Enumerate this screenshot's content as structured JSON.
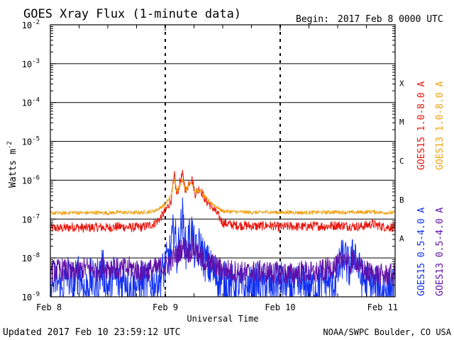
{
  "chart_data": {
    "type": "line",
    "title": "GOES Xray Flux (1-minute data)",
    "begin_label": "Begin:",
    "begin_value": "2017 Feb 8 0000 UTC",
    "xlabel": "Universal Time",
    "ylabel": "Watts m",
    "ylabel_sup": "-2",
    "yscale": "log",
    "ylim": [
      1e-09,
      0.01
    ],
    "xlim_days": [
      0,
      3
    ],
    "x_ticks": [
      {
        "day": 0,
        "label": "Feb 8"
      },
      {
        "day": 1,
        "label": "Feb 9"
      },
      {
        "day": 2,
        "label": "Feb 10"
      },
      {
        "day": 3,
        "label": "Feb 11"
      }
    ],
    "y_ticks": [
      {
        "base": "10",
        "exp": "-9",
        "value": 1e-09
      },
      {
        "base": "10",
        "exp": "-8",
        "value": 1e-08
      },
      {
        "base": "10",
        "exp": "-7",
        "value": 1e-07
      },
      {
        "base": "10",
        "exp": "-6",
        "value": 1e-06
      },
      {
        "base": "10",
        "exp": "-5",
        "value": 1e-05
      },
      {
        "base": "10",
        "exp": "-4",
        "value": 0.0001
      },
      {
        "base": "10",
        "exp": "-3",
        "value": 0.001
      },
      {
        "base": "10",
        "exp": "-2",
        "value": 0.01
      }
    ],
    "flare_classes": [
      {
        "label": "A",
        "value": 3.16e-08
      },
      {
        "label": "B",
        "value": 3.16e-07
      },
      {
        "label": "C",
        "value": 3.16e-06
      },
      {
        "label": "M",
        "value": 3.16e-05
      },
      {
        "label": "X",
        "value": 0.000316
      }
    ],
    "series": [
      {
        "name": "GOES15 1.0-8.0 A",
        "color": "#e8140c",
        "points": [
          [
            0,
            6e-08
          ],
          [
            0.1,
            5.8e-08
          ],
          [
            0.2,
            6.3e-08
          ],
          [
            0.3,
            5.9e-08
          ],
          [
            0.4,
            6.2e-08
          ],
          [
            0.5,
            6e-08
          ],
          [
            0.6,
            6.4e-08
          ],
          [
            0.7,
            6.1e-08
          ],
          [
            0.8,
            6.2e-08
          ],
          [
            0.9,
            7.5e-08
          ],
          [
            0.95,
            1e-07
          ],
          [
            1.0,
            1.6e-07
          ],
          [
            1.05,
            3e-07
          ],
          [
            1.08,
            1.3e-06
          ],
          [
            1.1,
            4e-07
          ],
          [
            1.13,
            9.5e-07
          ],
          [
            1.15,
            1.4e-06
          ],
          [
            1.18,
            5e-07
          ],
          [
            1.2,
            8e-07
          ],
          [
            1.23,
            1.15e-06
          ],
          [
            1.26,
            4.5e-07
          ],
          [
            1.3,
            6.5e-07
          ],
          [
            1.35,
            3e-07
          ],
          [
            1.4,
            2.2e-07
          ],
          [
            1.45,
            1.4e-07
          ],
          [
            1.5,
            8e-08
          ],
          [
            1.6,
            7e-08
          ],
          [
            1.7,
            6.8e-08
          ],
          [
            1.8,
            6.5e-08
          ],
          [
            1.9,
            6.9e-08
          ],
          [
            2.0,
            6.2e-08
          ],
          [
            2.1,
            6.6e-08
          ],
          [
            2.2,
            6.3e-08
          ],
          [
            2.3,
            6.7e-08
          ],
          [
            2.4,
            6.5e-08
          ],
          [
            2.5,
            7e-08
          ],
          [
            2.6,
            6.6e-08
          ],
          [
            2.7,
            6.4e-08
          ],
          [
            2.8,
            7.5e-08
          ],
          [
            2.9,
            6.3e-08
          ],
          [
            3.0,
            6.1e-08
          ]
        ]
      },
      {
        "name": "GOES13 1.0-8.0 A",
        "color": "#f0a010",
        "points": [
          [
            0,
            1.45e-07
          ],
          [
            0.1,
            1.42e-07
          ],
          [
            0.2,
            1.48e-07
          ],
          [
            0.3,
            1.44e-07
          ],
          [
            0.4,
            1.47e-07
          ],
          [
            0.5,
            1.43e-07
          ],
          [
            0.6,
            1.5e-07
          ],
          [
            0.7,
            1.46e-07
          ],
          [
            0.8,
            1.48e-07
          ],
          [
            0.9,
            1.6e-07
          ],
          [
            0.95,
            1.9e-07
          ],
          [
            1.0,
            2.4e-07
          ],
          [
            1.05,
            4e-07
          ],
          [
            1.08,
            1.1e-06
          ],
          [
            1.1,
            5e-07
          ],
          [
            1.13,
            8e-07
          ],
          [
            1.15,
            1e-06
          ],
          [
            1.18,
            5.5e-07
          ],
          [
            1.2,
            7.5e-07
          ],
          [
            1.23,
            9e-07
          ],
          [
            1.26,
            5e-07
          ],
          [
            1.3,
            5.5e-07
          ],
          [
            1.35,
            3.5e-07
          ],
          [
            1.4,
            2.6e-07
          ],
          [
            1.45,
            2e-07
          ],
          [
            1.5,
            1.6e-07
          ],
          [
            1.6,
            1.55e-07
          ],
          [
            1.7,
            1.5e-07
          ],
          [
            1.8,
            1.48e-07
          ],
          [
            1.9,
            1.52e-07
          ],
          [
            2.0,
            1.47e-07
          ],
          [
            2.1,
            1.5e-07
          ],
          [
            2.2,
            1.46e-07
          ],
          [
            2.3,
            1.49e-07
          ],
          [
            2.4,
            1.5e-07
          ],
          [
            2.5,
            1.52e-07
          ],
          [
            2.6,
            1.48e-07
          ],
          [
            2.7,
            1.5e-07
          ],
          [
            2.8,
            1.55e-07
          ],
          [
            2.9,
            1.47e-07
          ],
          [
            3.0,
            1.45e-07
          ]
        ]
      },
      {
        "name": "GOES15 0.5-4.0 A",
        "color": "#1030f0",
        "points": [
          [
            0,
            1.5e-09
          ],
          [
            0.05,
            3e-09
          ],
          [
            0.1,
            1.4e-09
          ],
          [
            0.15,
            4e-09
          ],
          [
            0.2,
            1.6e-09
          ],
          [
            0.25,
            5e-09
          ],
          [
            0.3,
            1.3e-09
          ],
          [
            0.35,
            3e-09
          ],
          [
            0.4,
            1.8e-09
          ],
          [
            0.45,
            6e-09
          ],
          [
            0.5,
            1.5e-09
          ],
          [
            0.55,
            4e-09
          ],
          [
            0.6,
            2e-09
          ],
          [
            0.65,
            3.5e-09
          ],
          [
            0.7,
            1.5e-09
          ],
          [
            0.8,
            2.5e-09
          ],
          [
            0.9,
            2e-09
          ],
          [
            0.95,
            3e-09
          ],
          [
            1.0,
            6e-09
          ],
          [
            1.05,
            1.5e-08
          ],
          [
            1.08,
            8e-08
          ],
          [
            1.1,
            1e-08
          ],
          [
            1.13,
            4e-08
          ],
          [
            1.15,
            1.1e-07
          ],
          [
            1.18,
            1.5e-08
          ],
          [
            1.2,
            3e-08
          ],
          [
            1.23,
            5e-08
          ],
          [
            1.26,
            1.2e-08
          ],
          [
            1.3,
            2e-08
          ],
          [
            1.35,
            8e-09
          ],
          [
            1.4,
            5e-09
          ],
          [
            1.5,
            2.5e-09
          ],
          [
            1.6,
            2e-09
          ],
          [
            1.7,
            1.5e-09
          ],
          [
            1.8,
            2.2e-09
          ],
          [
            1.9,
            1.8e-09
          ],
          [
            2.0,
            2.5e-09
          ],
          [
            2.1,
            1.6e-09
          ],
          [
            2.2,
            2e-09
          ],
          [
            2.3,
            1.7e-09
          ],
          [
            2.4,
            3e-09
          ],
          [
            2.45,
            1.5e-09
          ],
          [
            2.5,
            4e-09
          ],
          [
            2.55,
            1.2e-08
          ],
          [
            2.6,
            5e-09
          ],
          [
            2.65,
            1.6e-08
          ],
          [
            2.7,
            3e-09
          ],
          [
            2.8,
            2e-09
          ],
          [
            2.9,
            1.5e-09
          ],
          [
            3.0,
            1.8e-09
          ]
        ]
      },
      {
        "name": "GOES13 0.5-4.0 A",
        "color": "#6010a8",
        "points": [
          [
            0,
            4.5e-09
          ],
          [
            0.1,
            5e-09
          ],
          [
            0.2,
            4e-09
          ],
          [
            0.3,
            5.5e-09
          ],
          [
            0.4,
            4.8e-09
          ],
          [
            0.5,
            6e-09
          ],
          [
            0.6,
            5e-09
          ],
          [
            0.7,
            5.5e-09
          ],
          [
            0.8,
            4.5e-09
          ],
          [
            0.9,
            5e-09
          ],
          [
            1.0,
            6e-09
          ],
          [
            1.05,
            9e-09
          ],
          [
            1.1,
            1.2e-08
          ],
          [
            1.15,
            2e-08
          ],
          [
            1.2,
            1.4e-08
          ],
          [
            1.25,
            1.8e-08
          ],
          [
            1.3,
            1e-08
          ],
          [
            1.4,
            7e-09
          ],
          [
            1.5,
            5e-09
          ],
          [
            1.6,
            4.5e-09
          ],
          [
            1.7,
            4e-09
          ],
          [
            1.8,
            4.5e-09
          ],
          [
            1.9,
            4.2e-09
          ],
          [
            2.0,
            4e-09
          ],
          [
            2.1,
            3.8e-09
          ],
          [
            2.2,
            4.5e-09
          ],
          [
            2.3,
            4e-09
          ],
          [
            2.4,
            5e-09
          ],
          [
            2.45,
            6e-09
          ],
          [
            2.5,
            5.5e-09
          ],
          [
            2.55,
            1.2e-08
          ],
          [
            2.6,
            6e-09
          ],
          [
            2.65,
            1e-08
          ],
          [
            2.7,
            5e-09
          ],
          [
            2.8,
            4e-09
          ],
          [
            2.9,
            3.5e-09
          ],
          [
            3.0,
            3.8e-09
          ]
        ]
      }
    ]
  },
  "footer": {
    "updated": "Updated 2017 Feb 10 23:59:12 UTC",
    "credit": "NOAA/SWPC Boulder, CO USA"
  }
}
